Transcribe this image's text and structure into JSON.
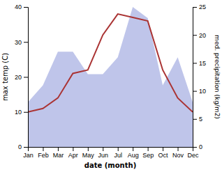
{
  "chart_data": {
    "type": "line",
    "xlabel": "date (month)",
    "ylabel": "max temp (C)",
    "y2label": "med. precipitation (kg/m2)",
    "categories": [
      "Jan",
      "Feb",
      "Mar",
      "Apr",
      "May",
      "Jun",
      "Jul",
      "Aug",
      "Sep",
      "Oct",
      "Nov",
      "Dec"
    ],
    "series": [
      {
        "type": "area",
        "axis": "y2",
        "color": "#b8bfe8",
        "values": [
          8,
          11,
          17,
          17,
          13,
          13,
          16,
          25,
          23,
          11,
          16,
          8
        ]
      },
      {
        "type": "line",
        "color": "#aa3333",
        "values": [
          10,
          11,
          14,
          21,
          22,
          32,
          38,
          37,
          36,
          22,
          14,
          10
        ]
      }
    ],
    "ylim": [
      0,
      40
    ],
    "yticks": [
      0,
      10,
      20,
      30,
      40
    ],
    "y2lim": [
      0,
      25
    ],
    "y2ticks": [
      0,
      5,
      10,
      15,
      20,
      25
    ],
    "grid": false
  }
}
